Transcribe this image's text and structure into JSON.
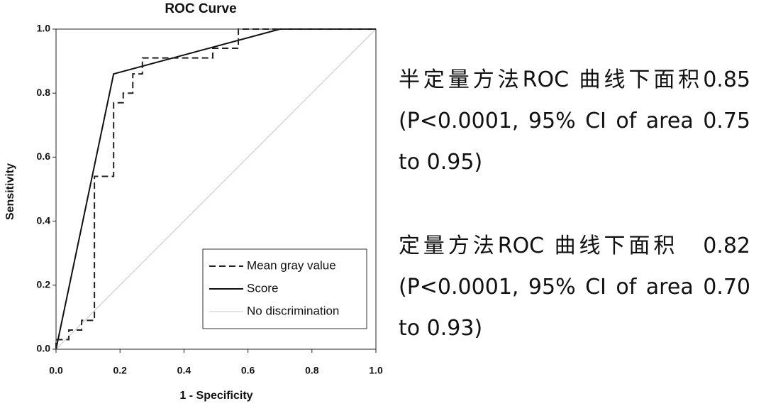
{
  "chart_data": {
    "type": "line",
    "title": "ROC Curve",
    "x_label": "1 - Specificity",
    "y_label": "Sensitivity",
    "xlim": [
      0,
      1
    ],
    "ylim": [
      0,
      1
    ],
    "xticks": [
      {
        "value": 0,
        "label": "0.0"
      },
      0.2,
      0.4,
      0.6,
      0.8,
      {
        "value": 1,
        "label": "1.0"
      }
    ],
    "yticks": [
      {
        "value": 0,
        "label": "0.0"
      },
      0.2,
      0.4,
      0.6,
      0.8,
      {
        "value": 1,
        "label": "1.0"
      }
    ],
    "legend": "lower right",
    "series": [
      {
        "name": "Mean gray value",
        "color": "#222222",
        "line_style": "dashed",
        "x": [
          0,
          0,
          0.04,
          0.04,
          0.08,
          0.08,
          0.12,
          0.12,
          0.18,
          0.18,
          0.21,
          0.21,
          0.24,
          0.24,
          0.27,
          0.27,
          0.49,
          0.49,
          0.57,
          0.57,
          1
        ],
        "values": [
          0,
          0.03,
          0.03,
          0.06,
          0.06,
          0.09,
          0.09,
          0.54,
          0.54,
          0.77,
          0.77,
          0.8,
          0.8,
          0.86,
          0.86,
          0.91,
          0.91,
          0.94,
          0.94,
          1,
          1
        ]
      },
      {
        "name": "Score",
        "color": "#111111",
        "line_style": "solid",
        "x": [
          0,
          0.18,
          0.7,
          1
        ],
        "values": [
          0,
          0.86,
          1,
          1
        ]
      },
      {
        "name": "No discrimination",
        "color": "#c8c8c8",
        "line_style": "solid",
        "x": [
          0,
          1
        ],
        "values": [
          0,
          1
        ]
      }
    ],
    "annotations": [
      [
        "半定量方法ROC 曲线下面积0.85",
        "(P<0.0001, 95% CI of area 0.75",
        "to 0.95)"
      ],
      [
        "定量方法ROC 曲线下面积　0.82",
        "(P<0.0001, 95% CI of area 0.70",
        "to 0.93)"
      ]
    ]
  }
}
